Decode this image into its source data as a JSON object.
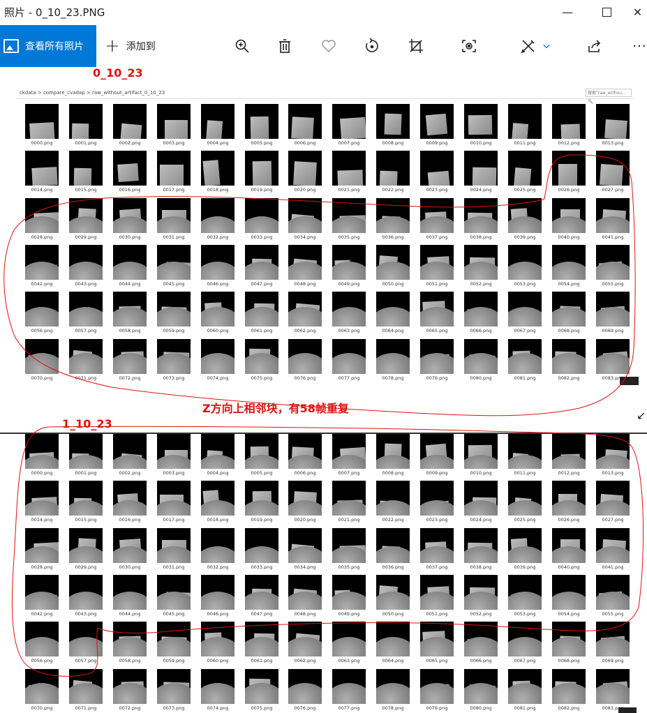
{
  "window": {
    "title": "照片 - 0_10_23.PNG",
    "minimize_icon": "minimize-icon",
    "maximize_icon": "maximize-icon",
    "close_icon": "close-icon"
  },
  "toolbar": {
    "see_all_label": "查看所有照片",
    "add_to_label": "添加到",
    "icons": [
      "zoom-in-icon",
      "delete-icon",
      "favorite-icon",
      "rotate-icon",
      "crop-icon",
      "enhance-icon",
      "edit-draw-icon",
      "chevron-down-icon",
      "share-icon",
      "more-icon"
    ],
    "accent": "#0078d7"
  },
  "annotations": {
    "top_label": "0_10_23",
    "middle_note": "Z方向上相邻块，有58帧重复",
    "bottom_label": "1_10_23",
    "color": "#e01010"
  },
  "explorer": {
    "breadcrumb": "ckdata  >  compare_cvadap  >  raw_without_artifact_0_10_23",
    "search_placeholder": "搜索\"raw_withou...  🔍"
  },
  "top_grid": {
    "files": [
      "0000.png",
      "0001.png",
      "0002.png",
      "0003.png",
      "0004.png",
      "0005.png",
      "0006.png",
      "0007.png",
      "0008.png",
      "0009.png",
      "0010.png",
      "0011.png",
      "0012.png",
      "0013.png",
      "0014.png",
      "0015.png",
      "0016.png",
      "0017.png",
      "0018.png",
      "0019.png",
      "0020.png",
      "0021.png",
      "0022.png",
      "0023.png",
      "0024.png",
      "0025.png",
      "0026.png",
      "0027.png",
      "0028.png",
      "0029.png",
      "0030.png",
      "0031.png",
      "0032.png",
      "0033.png",
      "0034.png",
      "0035.png",
      "0036.png",
      "0037.png",
      "0038.png",
      "0039.png",
      "0040.png",
      "0041.png",
      "0042.png",
      "0043.png",
      "0044.png",
      "0045.png",
      "0046.png",
      "0047.png",
      "0048.png",
      "0049.png",
      "0050.png",
      "0051.png",
      "0052.png",
      "0053.png",
      "0054.png",
      "0055.png",
      "0056.png",
      "0057.png",
      "0058.png",
      "0059.png",
      "0060.png",
      "0061.png",
      "0062.png",
      "0063.png",
      "0064.png",
      "0065.png",
      "0066.png",
      "0067.png",
      "0068.png",
      "0069.png",
      "0070.png",
      "0071.png",
      "0072.png",
      "0073.png",
      "0074.png",
      "0075.png",
      "0076.png",
      "0077.png",
      "0078.png",
      "0079.png",
      "0080.png",
      "0081.png",
      "0082.png",
      "0083.png"
    ]
  },
  "bottom_grid": {
    "files": [
      "0000.png",
      "0001.png",
      "0002.png",
      "0003.png",
      "0004.png",
      "0005.png",
      "0006.png",
      "0007.png",
      "0008.png",
      "0009.png",
      "0010.png",
      "0011.png",
      "0012.png",
      "0013.png",
      "0014.png",
      "0015.png",
      "0016.png",
      "0017.png",
      "0018.png",
      "0019.png",
      "0020.png",
      "0021.png",
      "0022.png",
      "0023.png",
      "0024.png",
      "0025.png",
      "0026.png",
      "0027.png",
      "0028.png",
      "0029.png",
      "0030.png",
      "0031.png",
      "0032.png",
      "0033.png",
      "0034.png",
      "0035.png",
      "0036.png",
      "0037.png",
      "0038.png",
      "0039.png",
      "0040.png",
      "0041.png",
      "0042.png",
      "0043.png",
      "0044.png",
      "0045.png",
      "0046.png",
      "0047.png",
      "0048.png",
      "0049.png",
      "0050.png",
      "0051.png",
      "0052.png",
      "0053.png",
      "0054.png",
      "0055.png",
      "0056.png",
      "0057.png",
      "0058.png",
      "0059.png",
      "0060.png",
      "0061.png",
      "0062.png",
      "0063.png",
      "0064.png",
      "0065.png",
      "0066.png",
      "0067.png",
      "0068.png",
      "0069.png",
      "0070.png",
      "0071.png",
      "0072.png",
      "0073.png",
      "0074.png",
      "0075.png",
      "0076.png",
      "0077.png",
      "0078.png",
      "0079.png",
      "0080.png",
      "0081.png",
      "0082.png",
      "0083.png"
    ]
  }
}
